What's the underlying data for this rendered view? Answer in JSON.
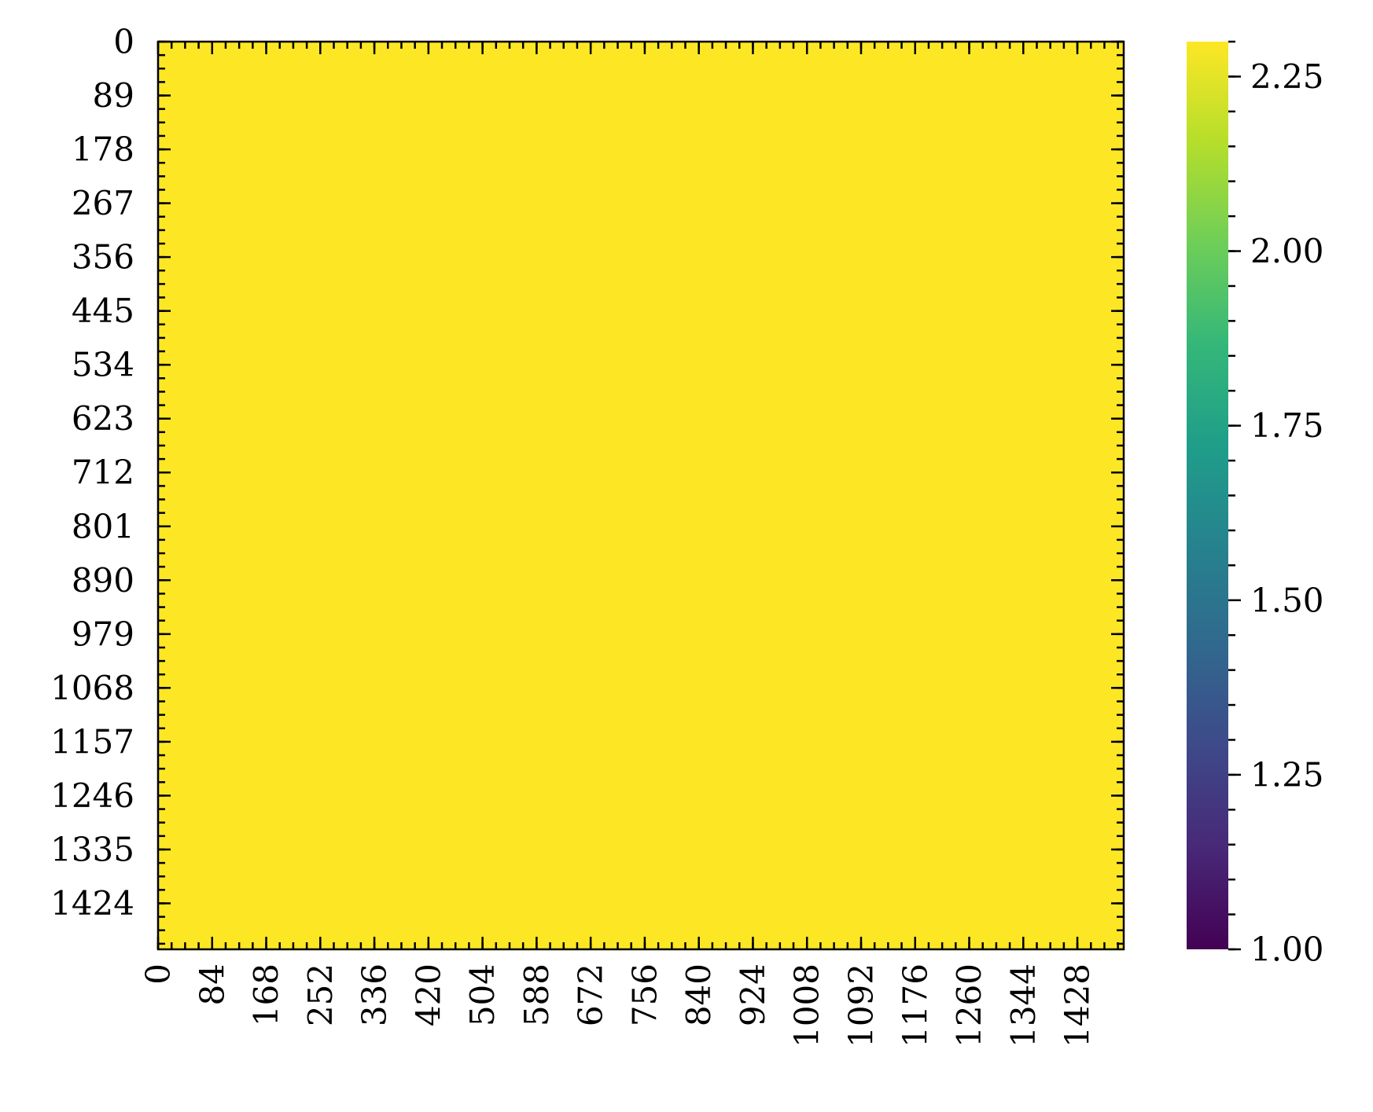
{
  "chart_data": {
    "type": "heatmap",
    "title": "",
    "xlabel": "",
    "ylabel": "",
    "x_tick_labels": [
      "0",
      "84",
      "168",
      "252",
      "336",
      "420",
      "504",
      "588",
      "672",
      "756",
      "840",
      "924",
      "1008",
      "1092",
      "1176",
      "1260",
      "1344",
      "1428"
    ],
    "y_tick_labels": [
      "0",
      "89",
      "178",
      "267",
      "356",
      "445",
      "534",
      "623",
      "712",
      "801",
      "890",
      "979",
      "1068",
      "1157",
      "1246",
      "1335",
      "1424"
    ],
    "x_range": [
      0,
      1500
    ],
    "y_range": [
      0,
      1500
    ],
    "values": [
      [
        2.3
      ]
    ],
    "fill_value": 2.3,
    "colorbar": {
      "colormap": "viridis",
      "min": 1.0,
      "max": 2.3,
      "tick_labels": [
        "1.00",
        "1.25",
        "1.50",
        "1.75",
        "2.00",
        "2.25"
      ],
      "tick_values": [
        1.0,
        1.25,
        1.5,
        1.75,
        2.0,
        2.25
      ]
    },
    "colors": {
      "viridis": [
        "#440154",
        "#482878",
        "#3e4989",
        "#31688e",
        "#26828e",
        "#1f9e89",
        "#35b779",
        "#6ece58",
        "#b5de2b",
        "#fde725"
      ]
    }
  }
}
